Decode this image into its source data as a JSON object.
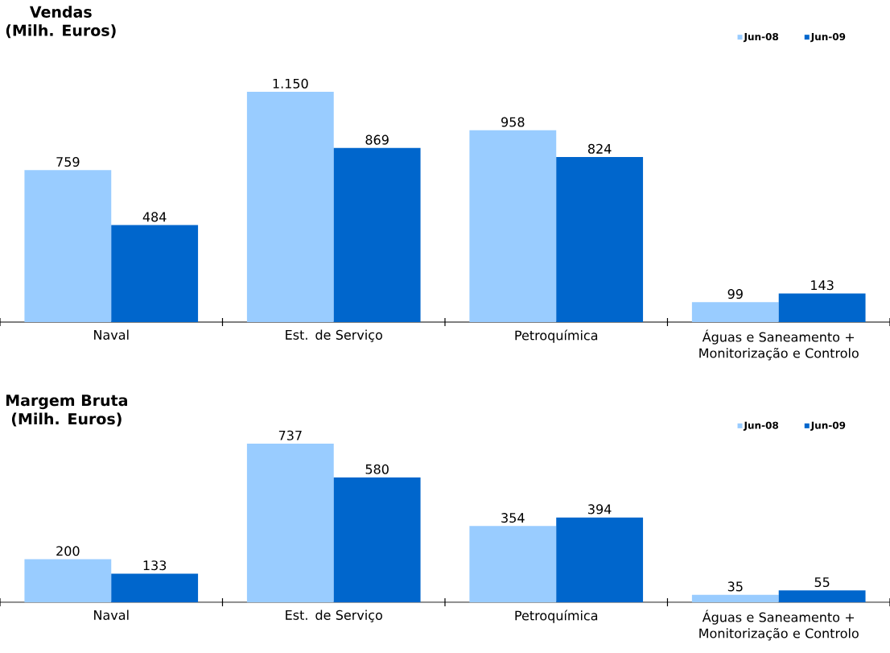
{
  "chart_data": [
    {
      "type": "bar",
      "title": "Vendas",
      "subtitle": "(Milh. Euros)",
      "categories": [
        "Naval",
        "Est. de Serviço",
        "Petroquímica",
        "Águas e Saneamento + Monitorização e Controlo"
      ],
      "legend": "top right",
      "series": [
        {
          "name": "Jun-08",
          "color": "#99ccff",
          "values": [
            759,
            1150,
            958,
            99
          ],
          "value_labels": [
            "759",
            "1.150",
            "958",
            "99"
          ]
        },
        {
          "name": "Jun-09",
          "color": "#0066cc",
          "values": [
            484,
            869,
            824,
            143
          ],
          "value_labels": [
            "484",
            "869",
            "824",
            "143"
          ]
        }
      ]
    },
    {
      "type": "bar",
      "title": "Margem Bruta",
      "subtitle": "(Milh. Euros)",
      "categories": [
        "Naval",
        "Est. de Serviço",
        "Petroquímica",
        "Águas e Saneamento + Monitorização e Controlo"
      ],
      "legend": "top right",
      "series": [
        {
          "name": "Jun-08",
          "color": "#99ccff",
          "values": [
            200,
            737,
            354,
            35
          ],
          "value_labels": [
            "200",
            "737",
            "354",
            "35"
          ]
        },
        {
          "name": "Jun-09",
          "color": "#0066cc",
          "values": [
            133,
            580,
            394,
            55
          ],
          "value_labels": [
            "133",
            "580",
            "394",
            "55"
          ]
        }
      ]
    }
  ]
}
